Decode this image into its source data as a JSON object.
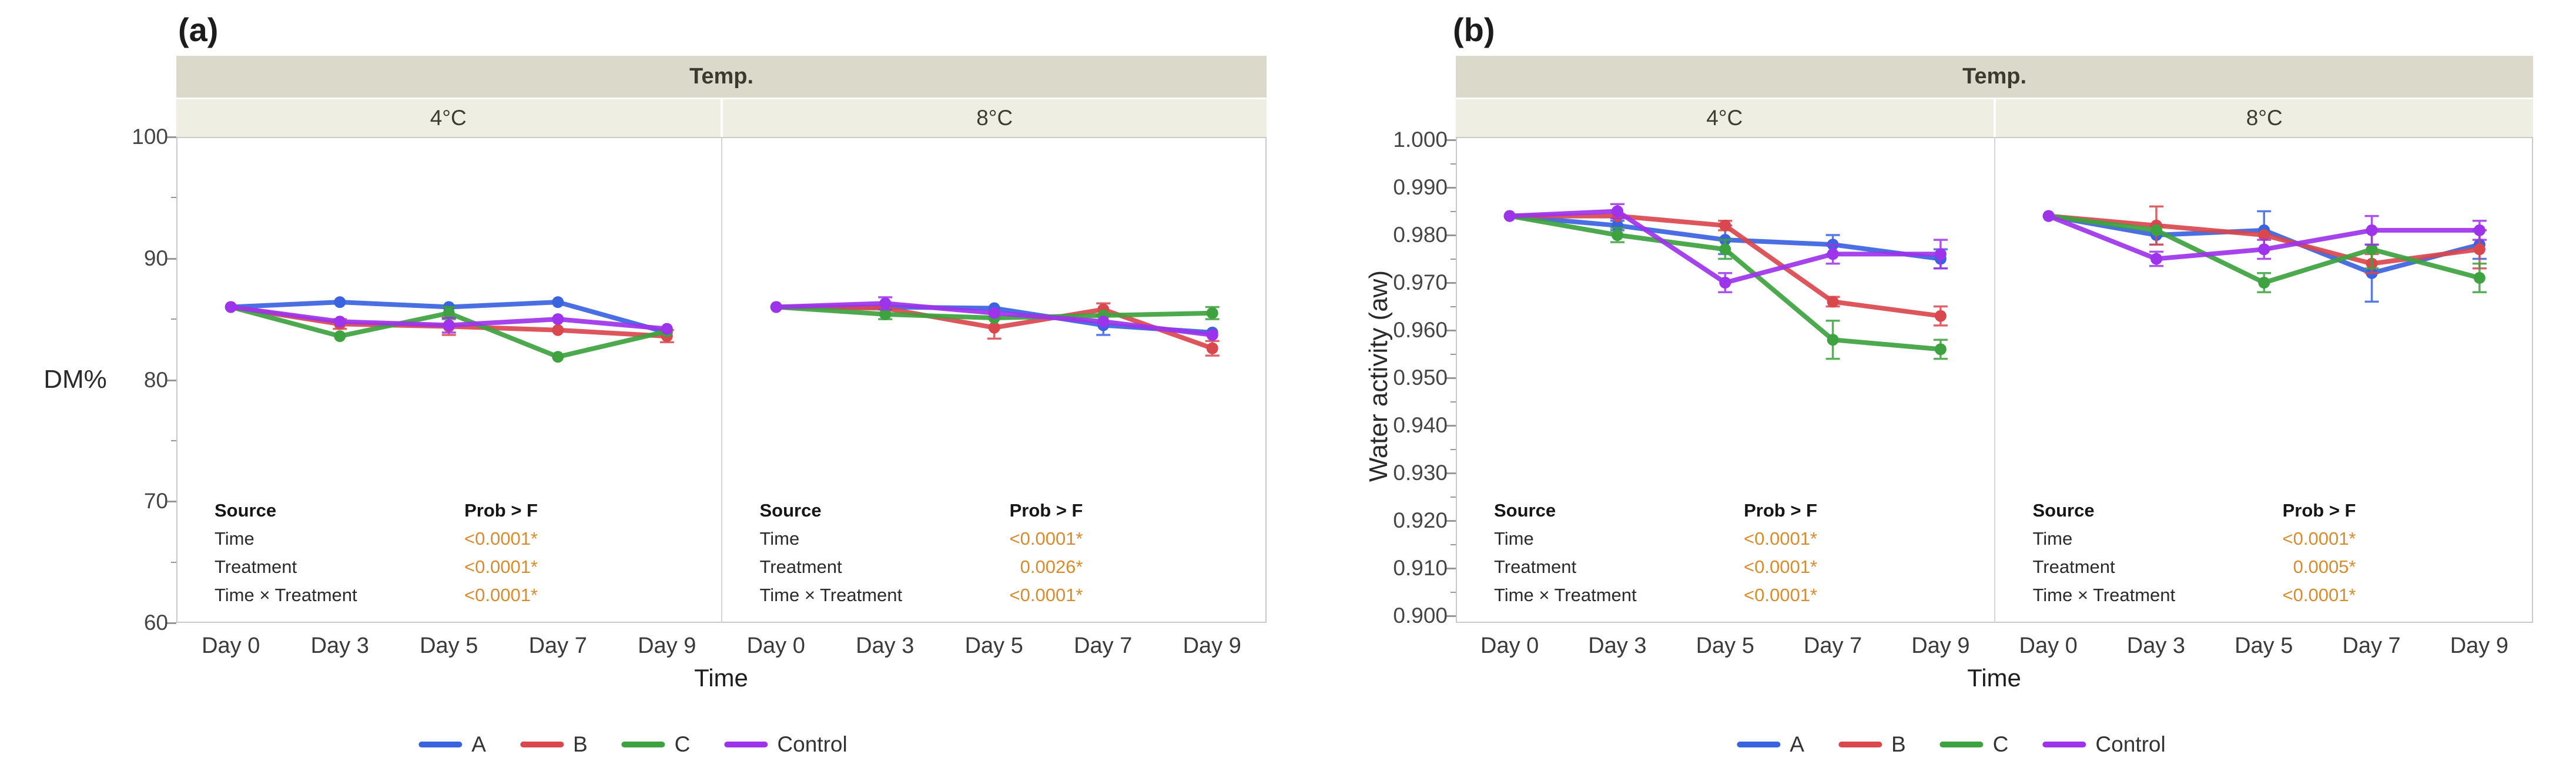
{
  "colors": {
    "A": "#3a63e0",
    "B": "#d9484d",
    "C": "#3da23f",
    "Control": "#9d33ea",
    "stat_value": "#d98c2d",
    "strip_header_bg": "#dbdaca",
    "strip_value_bg": "#efeee2",
    "plot_border": "#c9c9c9",
    "tick": "#979797",
    "text_dark": "#1c1c1c"
  },
  "legend_labels": [
    "A",
    "B",
    "C",
    "Control"
  ],
  "chart_data": [
    {
      "type": "line",
      "panel_label": "(a)",
      "strip_title": "Temp.",
      "ylabel": "DM%",
      "xlabel": "Time",
      "ylim": [
        60,
        100
      ],
      "grid": false,
      "legend_position": "bottom",
      "categories": [
        "Day 0",
        "Day 3",
        "Day 5",
        "Day 7",
        "Day 9"
      ],
      "y_ticks_major": [
        {
          "v": 100,
          "label": "100"
        },
        {
          "v": 90,
          "label": "90"
        },
        {
          "v": 80,
          "label": "80"
        },
        {
          "v": 70,
          "label": "70"
        },
        {
          "v": 60,
          "label": "60"
        }
      ],
      "y_ticks_minor": [
        95,
        85,
        75,
        65
      ],
      "stats_source_header": "Source",
      "stats_prob_header": "Prob > F",
      "facets": [
        {
          "label": "4°C",
          "series": [
            {
              "name": "A",
              "values": [
                86.0,
                86.4,
                86.0,
                86.4,
                83.9
              ],
              "errors": [
                null,
                null,
                null,
                null,
                null
              ]
            },
            {
              "name": "B",
              "values": [
                86.0,
                84.6,
                84.4,
                84.1,
                83.6
              ],
              "errors": [
                null,
                0.4,
                0.7,
                null,
                0.5
              ]
            },
            {
              "name": "C",
              "values": [
                86.0,
                83.6,
                85.5,
                81.9,
                84.0
              ],
              "errors": [
                null,
                null,
                0.5,
                null,
                null
              ]
            },
            {
              "name": "Control",
              "values": [
                86.0,
                84.8,
                84.5,
                85.0,
                84.2
              ],
              "errors": [
                null,
                null,
                0.6,
                null,
                null
              ]
            }
          ],
          "stats_rows": [
            {
              "source": "Time",
              "prob": "<0.0001*"
            },
            {
              "source": "Treatment",
              "prob": "<0.0001*"
            },
            {
              "source": "Time × Treatment",
              "prob": "<0.0001*"
            }
          ]
        },
        {
          "label": "8°C",
          "series": [
            {
              "name": "A",
              "values": [
                86.0,
                86.0,
                85.9,
                84.5,
                83.9
              ],
              "errors": [
                null,
                null,
                null,
                0.8,
                null
              ]
            },
            {
              "name": "B",
              "values": [
                86.0,
                85.9,
                84.3,
                85.8,
                82.6
              ],
              "errors": [
                null,
                null,
                0.9,
                0.5,
                0.6
              ]
            },
            {
              "name": "C",
              "values": [
                86.0,
                85.4,
                85.1,
                85.3,
                85.5
              ],
              "errors": [
                null,
                0.4,
                null,
                null,
                0.5
              ]
            },
            {
              "name": "Control",
              "values": [
                86.0,
                86.3,
                85.5,
                84.8,
                83.7
              ],
              "errors": [
                null,
                0.5,
                null,
                null,
                null
              ]
            }
          ],
          "stats_rows": [
            {
              "source": "Time",
              "prob": "<0.0001*"
            },
            {
              "source": "Treatment",
              "prob": "0.0026*"
            },
            {
              "source": "Time × Treatment",
              "prob": "<0.0001*"
            }
          ]
        }
      ]
    },
    {
      "type": "line",
      "panel_label": "(b)",
      "strip_title": "Temp.",
      "ylabel": "Water activity (aw)",
      "xlabel": "Time",
      "ylim": [
        0.9,
        1.0
      ],
      "grid": false,
      "legend_position": "bottom",
      "categories": [
        "Day 0",
        "Day 3",
        "Day 5",
        "Day 7",
        "Day 9"
      ],
      "y_ticks_major": [
        {
          "v": 1.0,
          "label": "1.000"
        },
        {
          "v": 0.99,
          "label": "0.990"
        },
        {
          "v": 0.98,
          "label": "0.980"
        },
        {
          "v": 0.97,
          "label": "0.970"
        },
        {
          "v": 0.96,
          "label": "0.960"
        },
        {
          "v": 0.95,
          "label": "0.950"
        },
        {
          "v": 0.94,
          "label": "0.940"
        },
        {
          "v": 0.93,
          "label": "0.930"
        },
        {
          "v": 0.92,
          "label": "0.920"
        },
        {
          "v": 0.91,
          "label": "0.910"
        },
        {
          "v": 0.9,
          "label": "0.900"
        }
      ],
      "y_ticks_minor": [
        0.995,
        0.985,
        0.975,
        0.965,
        0.955,
        0.945,
        0.935,
        0.925,
        0.915,
        0.905
      ],
      "stats_source_header": "Source",
      "stats_prob_header": "Prob > F",
      "facets": [
        {
          "label": "4°C",
          "series": [
            {
              "name": "A",
              "values": [
                0.984,
                0.982,
                0.979,
                0.978,
                0.975
              ],
              "errors": [
                null,
                0.001,
                0.003,
                0.002,
                0.002
              ]
            },
            {
              "name": "B",
              "values": [
                0.984,
                0.984,
                0.982,
                0.966,
                0.963
              ],
              "errors": [
                null,
                null,
                0.001,
                0.001,
                0.002
              ]
            },
            {
              "name": "C",
              "values": [
                0.984,
                0.98,
                0.977,
                0.958,
                0.956
              ],
              "errors": [
                null,
                0.0015,
                0.002,
                0.004,
                0.002
              ]
            },
            {
              "name": "Control",
              "values": [
                0.984,
                0.985,
                0.97,
                0.976,
                0.976
              ],
              "errors": [
                null,
                0.0015,
                0.002,
                0.002,
                0.003
              ]
            }
          ],
          "stats_rows": [
            {
              "source": "Time",
              "prob": "<0.0001*"
            },
            {
              "source": "Treatment",
              "prob": "<0.0001*"
            },
            {
              "source": "Time × Treatment",
              "prob": "<0.0001*"
            }
          ]
        },
        {
          "label": "8°C",
          "series": [
            {
              "name": "A",
              "values": [
                0.984,
                0.98,
                0.981,
                0.972,
                0.978
              ],
              "errors": [
                null,
                0.002,
                0.004,
                0.006,
                0.003
              ]
            },
            {
              "name": "B",
              "values": [
                0.984,
                0.982,
                0.98,
                0.974,
                0.977
              ],
              "errors": [
                null,
                0.004,
                null,
                0.002,
                0.004
              ]
            },
            {
              "name": "C",
              "values": [
                0.984,
                0.981,
                0.97,
                0.977,
                0.971
              ],
              "errors": [
                null,
                null,
                0.002,
                0.004,
                0.003
              ]
            },
            {
              "name": "Control",
              "values": [
                0.984,
                0.975,
                0.977,
                0.981,
                0.981
              ],
              "errors": [
                null,
                0.0015,
                0.002,
                0.003,
                0.002
              ]
            }
          ],
          "stats_rows": [
            {
              "source": "Time",
              "prob": "<0.0001*"
            },
            {
              "source": "Treatment",
              "prob": "0.0005*"
            },
            {
              "source": "Time × Treatment",
              "prob": "<0.0001*"
            }
          ]
        }
      ]
    }
  ]
}
